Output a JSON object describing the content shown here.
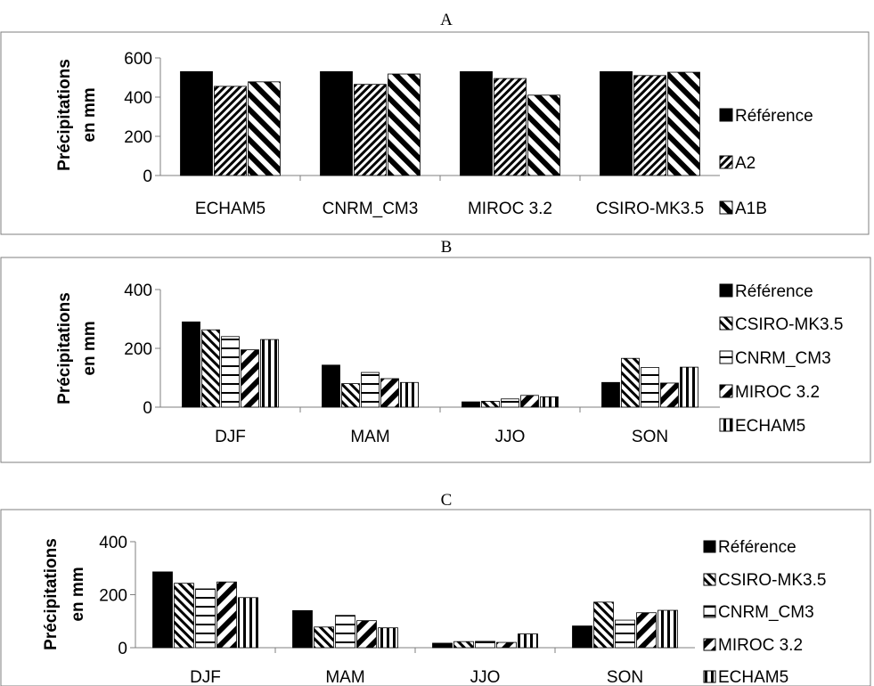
{
  "chart_data": [
    {
      "type": "bar",
      "title": "A",
      "ylabel": [
        "Précipitations",
        "en mm"
      ],
      "xlabel": "",
      "ylim": [
        0,
        600
      ],
      "yticks": [
        0,
        200,
        400,
        600
      ],
      "categories": [
        "ECHAM5",
        "CNRM_CM3",
        "MIROC 3.2",
        "CSIRO-MK3.5"
      ],
      "legend_position": "right",
      "series": [
        {
          "name": "Référence",
          "pattern": "solid",
          "values": [
            530,
            530,
            530,
            530
          ]
        },
        {
          "name": "A2",
          "pattern": "diag-fine",
          "values": [
            455,
            465,
            495,
            510
          ]
        },
        {
          "name": "A1B",
          "pattern": "diag-wide",
          "values": [
            478,
            518,
            410,
            527
          ]
        }
      ]
    },
    {
      "type": "bar",
      "title": "B",
      "ylabel": [
        "Précipitations",
        "en mm"
      ],
      "xlabel": "",
      "ylim": [
        0,
        400
      ],
      "yticks": [
        0,
        200,
        400
      ],
      "categories": [
        "DJF",
        "MAM",
        "JJO",
        "SON"
      ],
      "legend_position": "right",
      "series": [
        {
          "name": "Référence",
          "pattern": "solid",
          "values": [
            290,
            143,
            18,
            84
          ]
        },
        {
          "name": "CSIRO-MK3.5",
          "pattern": "diag-down",
          "values": [
            263,
            80,
            20,
            166
          ]
        },
        {
          "name": "CNRM_CM3",
          "pattern": "horiz",
          "values": [
            240,
            118,
            28,
            135
          ]
        },
        {
          "name": "MIROC 3.2",
          "pattern": "diag-up",
          "values": [
            195,
            97,
            40,
            82
          ]
        },
        {
          "name": "ECHAM5",
          "pattern": "vert",
          "values": [
            230,
            84,
            35,
            136
          ]
        }
      ]
    },
    {
      "type": "bar",
      "title": "C",
      "ylabel": [
        "Précipitations",
        "en mm"
      ],
      "xlabel": "",
      "ylim": [
        0,
        400
      ],
      "yticks": [
        0,
        200,
        400
      ],
      "categories": [
        "DJF",
        "MAM",
        "JJO",
        "SON"
      ],
      "legend_position": "right",
      "series": [
        {
          "name": "Référence",
          "pattern": "solid",
          "values": [
            286,
            140,
            17,
            82
          ]
        },
        {
          "name": "CSIRO-MK3.5",
          "pattern": "diag-down",
          "values": [
            243,
            78,
            23,
            172
          ]
        },
        {
          "name": "CNRM_CM3",
          "pattern": "horiz",
          "values": [
            222,
            122,
            24,
            104
          ]
        },
        {
          "name": "MIROC 3.2",
          "pattern": "diag-up",
          "values": [
            248,
            102,
            20,
            132
          ]
        },
        {
          "name": "ECHAM5",
          "pattern": "vert",
          "values": [
            189,
            75,
            52,
            141
          ]
        }
      ]
    }
  ]
}
